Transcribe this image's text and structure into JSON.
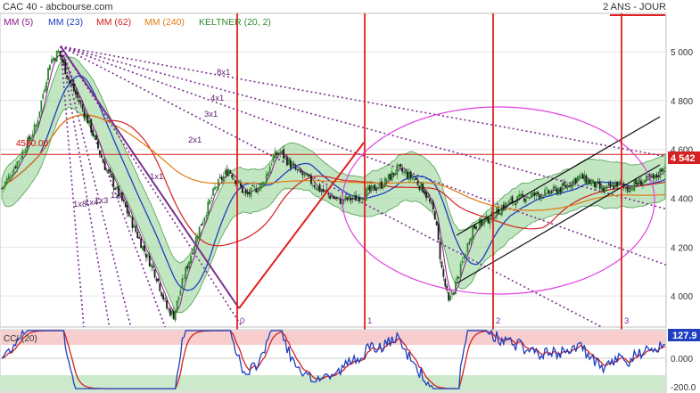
{
  "header": {
    "title": "CAC 40 - abcbourse.com",
    "period": "2 ANS - JOUR",
    "legend": [
      {
        "label": "MM (5)",
        "color": "#8b1a8b"
      },
      {
        "label": "MM (23)",
        "color": "#1f3fbf"
      },
      {
        "label": "MM (62)",
        "color": "#d42020"
      },
      {
        "label": "MM (240)",
        "color": "#e07a10"
      },
      {
        "label": "KELTNER (20, 2)",
        "color": "#2e8b2e"
      }
    ]
  },
  "chart_data": {
    "type": "candlestick",
    "ylim": [
      3880,
      5150
    ],
    "y_ticks": [
      "5 000",
      "4 800",
      "4 600",
      "4 400",
      "4 200",
      "4 000"
    ],
    "y_tick_values": [
      5000,
      4800,
      4600,
      4400,
      4200,
      4000
    ],
    "last_price_label": "4 542",
    "last_price": 4542,
    "resistance_label": "4580.00",
    "resistance": 4580,
    "series": [
      {
        "name": "MM (5)",
        "color": "#8b1a8b"
      },
      {
        "name": "MM (23)",
        "color": "#1f3fbf"
      },
      {
        "name": "MM (62)",
        "color": "#d42020"
      },
      {
        "name": "MM (240)",
        "color": "#e07a10"
      },
      {
        "name": "KELTNER (20, 2)",
        "color": "#2e8b2e"
      }
    ],
    "price_path": [
      [
        0,
        4440
      ],
      [
        10,
        4560
      ],
      [
        20,
        4700
      ],
      [
        28,
        4960
      ],
      [
        33,
        5000
      ],
      [
        40,
        4870
      ],
      [
        50,
        4720
      ],
      [
        60,
        4530
      ],
      [
        72,
        4360
      ],
      [
        82,
        4200
      ],
      [
        90,
        4080
      ],
      [
        96,
        3950
      ],
      [
        100,
        3920
      ],
      [
        106,
        4080
      ],
      [
        114,
        4260
      ],
      [
        124,
        4440
      ],
      [
        132,
        4520
      ],
      [
        142,
        4410
      ],
      [
        152,
        4460
      ],
      [
        158,
        4570
      ],
      [
        162,
        4590
      ],
      [
        170,
        4520
      ],
      [
        178,
        4480
      ],
      [
        186,
        4430
      ],
      [
        196,
        4390
      ],
      [
        206,
        4400
      ],
      [
        214,
        4430
      ],
      [
        222,
        4460
      ],
      [
        230,
        4520
      ],
      [
        240,
        4480
      ],
      [
        246,
        4430
      ],
      [
        252,
        4330
      ],
      [
        256,
        4110
      ],
      [
        260,
        3970
      ],
      [
        266,
        4090
      ],
      [
        274,
        4280
      ],
      [
        284,
        4320
      ],
      [
        294,
        4380
      ],
      [
        306,
        4410
      ],
      [
        316,
        4420
      ],
      [
        326,
        4440
      ],
      [
        336,
        4490
      ],
      [
        344,
        4460
      ],
      [
        350,
        4430
      ],
      [
        358,
        4460
      ],
      [
        364,
        4440
      ],
      [
        372,
        4470
      ],
      [
        380,
        4480
      ],
      [
        386,
        4542
      ]
    ],
    "fan_lines": [
      "8x1",
      "4x1",
      "3x1",
      "2x1",
      "1x1",
      "1x2",
      "1x3",
      "1x4",
      "1x8"
    ],
    "vertical_markers": [
      "0",
      "1",
      "2",
      "3"
    ],
    "cci": {
      "label": "CCI (20)",
      "last_value_label": "127.9",
      "last_value": 127.9,
      "y_ticks": [
        "0.000",
        "-200.0"
      ],
      "y_tick_values": [
        0,
        -200
      ],
      "overbought": 100,
      "oversold": -100
    }
  }
}
